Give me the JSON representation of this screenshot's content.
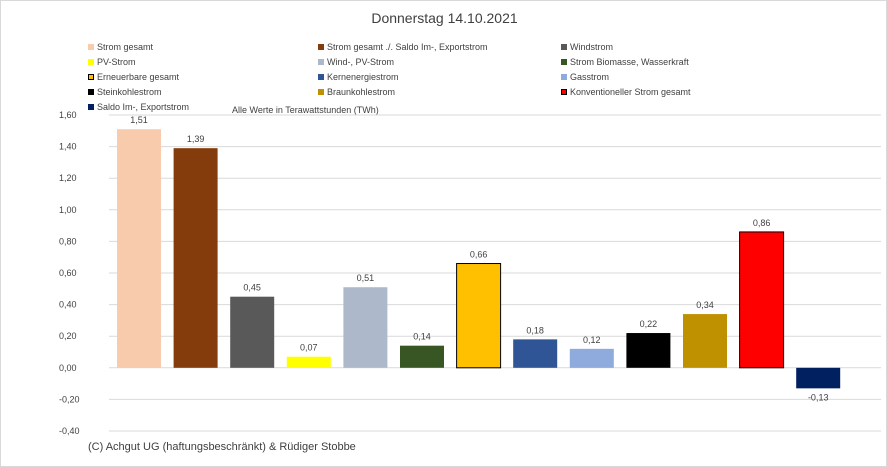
{
  "chart_data": {
    "type": "bar",
    "title": "Donnerstag 14.10.2021",
    "subtitle": "Alle Werte in Terawattstunden (TWh)",
    "footer": "(C) Achgut UG (haftungsbeschränkt) & Rüdiger Stobbe",
    "ylim": [
      -0.4,
      1.6
    ],
    "yticks": [
      "-0,40",
      "-0,20",
      "0,00",
      "0,20",
      "0,40",
      "0,60",
      "0,80",
      "1,00",
      "1,20",
      "1,40",
      "1,60"
    ],
    "legend_position": "top",
    "categories": [
      "Strom gesamt",
      "Strom gesamt ./. Saldo Im-, Exportstrom",
      "Windstrom",
      "PV-Strom",
      "Wind-, PV-Strom",
      "Strom Biomasse, Wasserkraft",
      "Erneuerbare gesamt",
      "Kernenergiestrom",
      "Gasstrom",
      "Steinkohlestrom",
      "Braunkohlestrom",
      "Konventioneller Strom gesamt",
      "Saldo Im-, Exportstrom"
    ],
    "values": [
      1.51,
      1.39,
      0.45,
      0.07,
      0.51,
      0.14,
      0.66,
      0.18,
      0.12,
      0.22,
      0.34,
      0.86,
      -0.13
    ],
    "labels": [
      "1,51",
      "1,39",
      "0,45",
      "0,07",
      "0,51",
      "0,14",
      "0,66",
      "0,18",
      "0,12",
      "0,22",
      "0,34",
      "0,86",
      "-0,13"
    ],
    "colors": [
      "#f8cbad",
      "#843c0c",
      "#595959",
      "#ffff00",
      "#adb9ca",
      "#375623",
      "#ffc000",
      "#2f5597",
      "#8faadc",
      "#000000",
      "#bf9000",
      "#ff0000",
      "#002060"
    ],
    "outlined": [
      false,
      false,
      false,
      false,
      false,
      false,
      true,
      false,
      false,
      false,
      false,
      true,
      false
    ]
  }
}
